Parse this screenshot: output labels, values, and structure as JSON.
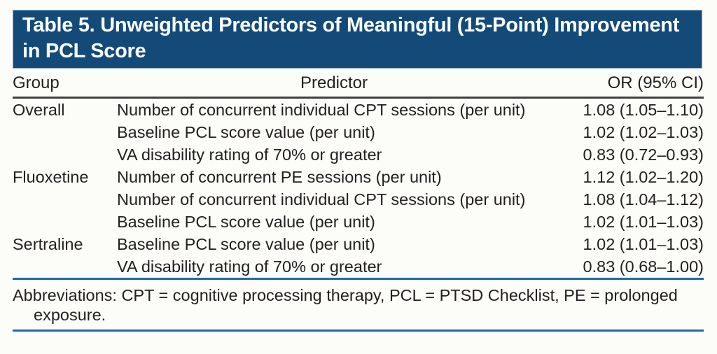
{
  "colors": {
    "title_bar_background": "#134a77",
    "title_bar_border": "#84aac9",
    "title_text": "#ffffff",
    "header_rule": "#404042",
    "blue_rule": "#1e6ba6",
    "body_text": "#231f20",
    "page_background": "#fcfcf9"
  },
  "header": {
    "title_line1": "Table 5. Unweighted Predictors of Meaningful (15-Point) Improvement",
    "title_line2": "in PCL Score"
  },
  "table": {
    "columns": [
      "Group",
      "Predictor",
      "OR (95% CI)"
    ],
    "rows": [
      {
        "group": "Overall",
        "predictor": "Number of concurrent individual CPT sessions (per unit)",
        "or_ci": "1.08 (1.05–1.10)"
      },
      {
        "group": "",
        "predictor": "Baseline PCL score value (per unit)",
        "or_ci": "1.02 (1.02–1.03)"
      },
      {
        "group": "",
        "predictor": "VA disability rating of 70% or greater",
        "or_ci": "0.83 (0.72–0.93)"
      },
      {
        "group": "Fluoxetine",
        "predictor": "Number of concurrent PE sessions (per unit)",
        "or_ci": "1.12 (1.02–1.20)"
      },
      {
        "group": "",
        "predictor": "Number of concurrent individual CPT sessions (per unit)",
        "or_ci": "1.08 (1.04–1.12)"
      },
      {
        "group": "",
        "predictor": "Baseline PCL score value (per unit)",
        "or_ci": "1.02 (1.01–1.03)"
      },
      {
        "group": "Sertraline",
        "predictor": "Baseline PCL score value (per unit)",
        "or_ci": "1.02 (1.01–1.03)"
      },
      {
        "group": "",
        "predictor": "VA disability rating of 70% or greater",
        "or_ci": "0.83 (0.68–1.00)"
      }
    ]
  },
  "footnote": {
    "line1": "Abbreviations: CPT = cognitive processing therapy, PCL = PTSD Checklist, PE = prolonged",
    "line2": "exposure."
  }
}
